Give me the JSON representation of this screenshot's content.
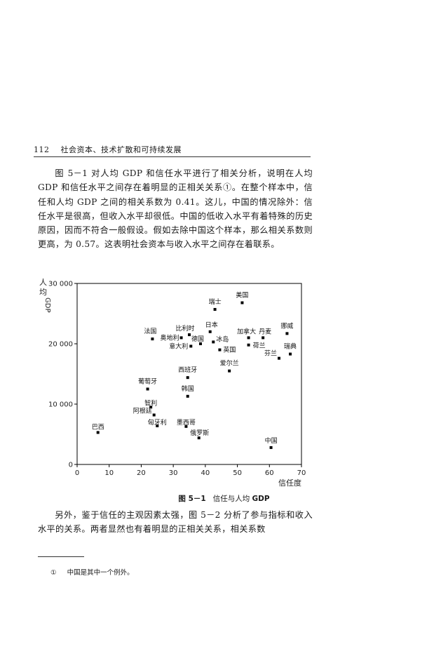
{
  "header": {
    "page_number": "112",
    "running_title": "社会资本、技术扩散和可持续发展"
  },
  "paragraph1": "图 5－1 对人均 GDP 和信任水平进行了相关分析，说明在人均 GDP 和信任水平之间存在着明显的正相关关系①。在整个样本中，信任和人均 GDP 之间的相关系数为 0.41。这儿，中国的情况除外：信任水平是很高，但收入水平却很低。中国的低收入水平有着特殊的历史原因，因而不符合一般假设。假如去除中国这个样本，那么相关系数则更高，为 0.57。这表明社会资本与收入水平之间存在着联系。",
  "figure": {
    "number": "图 5－1",
    "caption_text": "信任与人均 ",
    "caption_gdp": "GDP"
  },
  "paragraph2": "另外，鉴于信任的主观因素太强，图 5－2 分析了参与指标和收入水平的关系。两者显然也有着明显的正相关关系，相关系数",
  "footnote": {
    "mark": "①",
    "text": "中国是其中一个例外。"
  },
  "chart_data": {
    "type": "scatter",
    "xlabel": "信任度",
    "ylabel_line1": "人",
    "ylabel_line2": "均",
    "ylabel_line3": "GDP",
    "xlim": [
      0,
      70
    ],
    "ylim": [
      0,
      30000
    ],
    "x_ticks": [
      0,
      10,
      20,
      30,
      40,
      50,
      60,
      70
    ],
    "y_ticks": [
      0,
      10000,
      20000,
      30000
    ],
    "y_tick_labels": [
      "0",
      "10 000",
      "20 000",
      "30 000"
    ],
    "points": [
      {
        "name": "美国",
        "x": 51.5,
        "y": 26800
      },
      {
        "name": "瑞士",
        "x": 43,
        "y": 25700
      },
      {
        "name": "挪威",
        "x": 65.5,
        "y": 21700
      },
      {
        "name": "丹麦",
        "x": 58,
        "y": 21000
      },
      {
        "name": "加拿大",
        "x": 53.5,
        "y": 21000
      },
      {
        "name": "荷兰",
        "x": 53.5,
        "y": 19800
      },
      {
        "name": "瑞典",
        "x": 66.5,
        "y": 18300
      },
      {
        "name": "芬兰",
        "x": 63,
        "y": 17600
      },
      {
        "name": "日本",
        "x": 41.5,
        "y": 22000
      },
      {
        "name": "冰岛",
        "x": 42.5,
        "y": 20300
      },
      {
        "name": "英国",
        "x": 44.5,
        "y": 19000
      },
      {
        "name": "德国",
        "x": 38.5,
        "y": 20000
      },
      {
        "name": "比利时",
        "x": 35,
        "y": 21500
      },
      {
        "name": "奥地利",
        "x": 32.5,
        "y": 21000
      },
      {
        "name": "法国",
        "x": 23.5,
        "y": 20800
      },
      {
        "name": "意大利",
        "x": 35.5,
        "y": 19600
      },
      {
        "name": "爱尔兰",
        "x": 47.5,
        "y": 15500
      },
      {
        "name": "西班牙",
        "x": 34.5,
        "y": 14400
      },
      {
        "name": "葡萄牙",
        "x": 22,
        "y": 12500
      },
      {
        "name": "韩国",
        "x": 34.5,
        "y": 11300
      },
      {
        "name": "智利",
        "x": 23,
        "y": 9500
      },
      {
        "name": "阿根廷",
        "x": 24,
        "y": 8200
      },
      {
        "name": "匈牙利",
        "x": 25,
        "y": 6400
      },
      {
        "name": "墨西哥",
        "x": 34,
        "y": 6300
      },
      {
        "name": "俄罗斯",
        "x": 38,
        "y": 4400
      },
      {
        "name": "巴西",
        "x": 6.5,
        "y": 5300
      },
      {
        "name": "中国",
        "x": 60.5,
        "y": 2800
      }
    ]
  }
}
